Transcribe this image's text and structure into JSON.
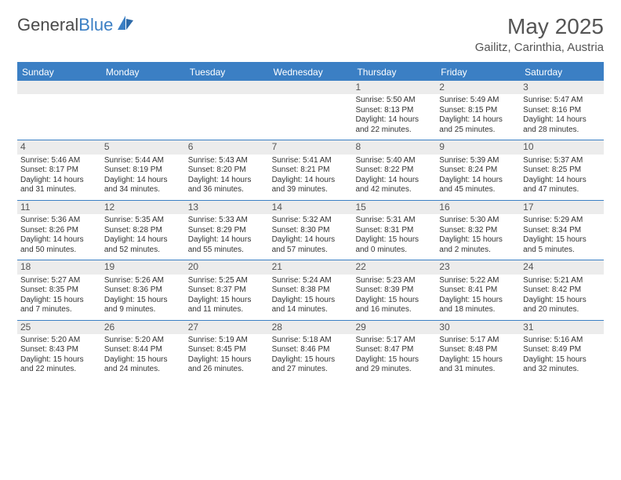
{
  "brand": {
    "word1": "General",
    "word2": "Blue"
  },
  "title": {
    "month": "May 2025",
    "location": "Gailitz, Carinthia, Austria"
  },
  "colors": {
    "accent": "#3b7fc4",
    "grey": "#ececec",
    "text": "#333333",
    "muted": "#555555",
    "bg": "#ffffff"
  },
  "dayHeaders": [
    "Sunday",
    "Monday",
    "Tuesday",
    "Wednesday",
    "Thursday",
    "Friday",
    "Saturday"
  ],
  "weeks": [
    [
      null,
      null,
      null,
      null,
      {
        "n": "1",
        "sr": "5:50 AM",
        "ss": "8:13 PM",
        "dl": "14 hours and 22 minutes."
      },
      {
        "n": "2",
        "sr": "5:49 AM",
        "ss": "8:15 PM",
        "dl": "14 hours and 25 minutes."
      },
      {
        "n": "3",
        "sr": "5:47 AM",
        "ss": "8:16 PM",
        "dl": "14 hours and 28 minutes."
      }
    ],
    [
      {
        "n": "4",
        "sr": "5:46 AM",
        "ss": "8:17 PM",
        "dl": "14 hours and 31 minutes."
      },
      {
        "n": "5",
        "sr": "5:44 AM",
        "ss": "8:19 PM",
        "dl": "14 hours and 34 minutes."
      },
      {
        "n": "6",
        "sr": "5:43 AM",
        "ss": "8:20 PM",
        "dl": "14 hours and 36 minutes."
      },
      {
        "n": "7",
        "sr": "5:41 AM",
        "ss": "8:21 PM",
        "dl": "14 hours and 39 minutes."
      },
      {
        "n": "8",
        "sr": "5:40 AM",
        "ss": "8:22 PM",
        "dl": "14 hours and 42 minutes."
      },
      {
        "n": "9",
        "sr": "5:39 AM",
        "ss": "8:24 PM",
        "dl": "14 hours and 45 minutes."
      },
      {
        "n": "10",
        "sr": "5:37 AM",
        "ss": "8:25 PM",
        "dl": "14 hours and 47 minutes."
      }
    ],
    [
      {
        "n": "11",
        "sr": "5:36 AM",
        "ss": "8:26 PM",
        "dl": "14 hours and 50 minutes."
      },
      {
        "n": "12",
        "sr": "5:35 AM",
        "ss": "8:28 PM",
        "dl": "14 hours and 52 minutes."
      },
      {
        "n": "13",
        "sr": "5:33 AM",
        "ss": "8:29 PM",
        "dl": "14 hours and 55 minutes."
      },
      {
        "n": "14",
        "sr": "5:32 AM",
        "ss": "8:30 PM",
        "dl": "14 hours and 57 minutes."
      },
      {
        "n": "15",
        "sr": "5:31 AM",
        "ss": "8:31 PM",
        "dl": "15 hours and 0 minutes."
      },
      {
        "n": "16",
        "sr": "5:30 AM",
        "ss": "8:32 PM",
        "dl": "15 hours and 2 minutes."
      },
      {
        "n": "17",
        "sr": "5:29 AM",
        "ss": "8:34 PM",
        "dl": "15 hours and 5 minutes."
      }
    ],
    [
      {
        "n": "18",
        "sr": "5:27 AM",
        "ss": "8:35 PM",
        "dl": "15 hours and 7 minutes."
      },
      {
        "n": "19",
        "sr": "5:26 AM",
        "ss": "8:36 PM",
        "dl": "15 hours and 9 minutes."
      },
      {
        "n": "20",
        "sr": "5:25 AM",
        "ss": "8:37 PM",
        "dl": "15 hours and 11 minutes."
      },
      {
        "n": "21",
        "sr": "5:24 AM",
        "ss": "8:38 PM",
        "dl": "15 hours and 14 minutes."
      },
      {
        "n": "22",
        "sr": "5:23 AM",
        "ss": "8:39 PM",
        "dl": "15 hours and 16 minutes."
      },
      {
        "n": "23",
        "sr": "5:22 AM",
        "ss": "8:41 PM",
        "dl": "15 hours and 18 minutes."
      },
      {
        "n": "24",
        "sr": "5:21 AM",
        "ss": "8:42 PM",
        "dl": "15 hours and 20 minutes."
      }
    ],
    [
      {
        "n": "25",
        "sr": "5:20 AM",
        "ss": "8:43 PM",
        "dl": "15 hours and 22 minutes."
      },
      {
        "n": "26",
        "sr": "5:20 AM",
        "ss": "8:44 PM",
        "dl": "15 hours and 24 minutes."
      },
      {
        "n": "27",
        "sr": "5:19 AM",
        "ss": "8:45 PM",
        "dl": "15 hours and 26 minutes."
      },
      {
        "n": "28",
        "sr": "5:18 AM",
        "ss": "8:46 PM",
        "dl": "15 hours and 27 minutes."
      },
      {
        "n": "29",
        "sr": "5:17 AM",
        "ss": "8:47 PM",
        "dl": "15 hours and 29 minutes."
      },
      {
        "n": "30",
        "sr": "5:17 AM",
        "ss": "8:48 PM",
        "dl": "15 hours and 31 minutes."
      },
      {
        "n": "31",
        "sr": "5:16 AM",
        "ss": "8:49 PM",
        "dl": "15 hours and 32 minutes."
      }
    ]
  ],
  "labels": {
    "sunrise": "Sunrise:",
    "sunset": "Sunset:",
    "daylight": "Daylight:"
  }
}
